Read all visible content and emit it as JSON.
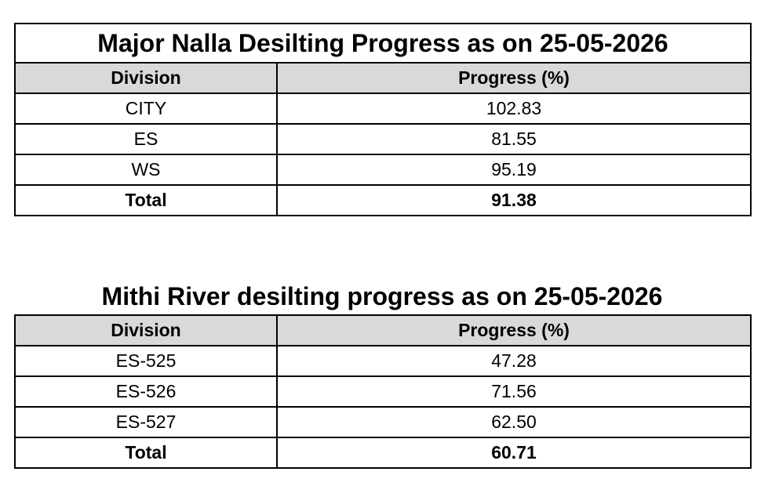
{
  "table1": {
    "title": "Major Nalla Desilting Progress as on 25-05-2026",
    "headers": {
      "division": "Division",
      "progress": "Progress (%)"
    },
    "rows": [
      {
        "division": "CITY",
        "progress": "102.83"
      },
      {
        "division": "ES",
        "progress": "81.55"
      },
      {
        "division": "WS",
        "progress": "95.19"
      }
    ],
    "total": {
      "division": "Total",
      "progress": "91.38"
    }
  },
  "table2": {
    "title": "Mithi River desilting progress as on 25-05-2026",
    "headers": {
      "division": "Division",
      "progress": "Progress (%)"
    },
    "rows": [
      {
        "division": "ES-525",
        "progress": "47.28"
      },
      {
        "division": "ES-526",
        "progress": "71.56"
      },
      {
        "division": "ES-527",
        "progress": "62.50"
      }
    ],
    "total": {
      "division": "Total",
      "progress": "60.71"
    }
  }
}
